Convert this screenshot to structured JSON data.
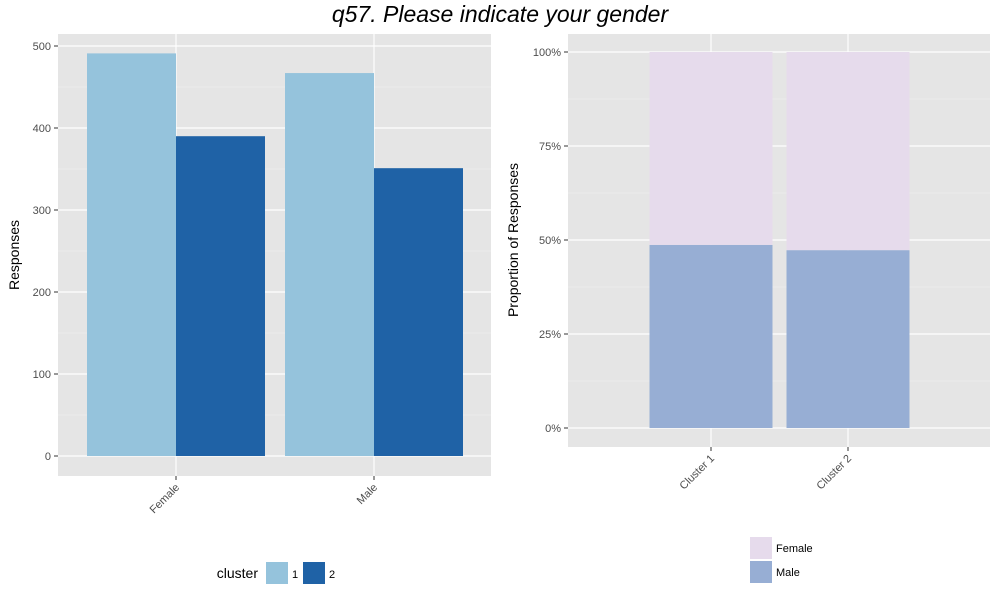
{
  "title": "q57. Please indicate your gender",
  "chart_data": [
    {
      "type": "bar",
      "categories": [
        "Female",
        "Male"
      ],
      "series": [
        {
          "name": "1",
          "values": [
            491,
            467
          ],
          "color": "#95c3dc"
        },
        {
          "name": "2",
          "values": [
            390,
            351
          ],
          "color": "#1f62a6"
        }
      ],
      "ylabel": "Responses",
      "xlabel": "",
      "ylim": [
        0,
        525
      ],
      "yticks": [
        0,
        100,
        200,
        300,
        400,
        500
      ],
      "legend": {
        "title": "cluster",
        "position": "bottom"
      },
      "grid": true
    },
    {
      "type": "bar",
      "stacked": true,
      "categories": [
        "Cluster 1",
        "Cluster 2"
      ],
      "series": [
        {
          "name": "Male",
          "values": [
            0.487,
            0.473
          ],
          "color": "#97aed4"
        },
        {
          "name": "Female",
          "values": [
            0.513,
            0.527
          ],
          "color": "#e6dbec"
        }
      ],
      "ylabel": "Proportion of Responses",
      "xlabel": "",
      "ylim": [
        0,
        1.05
      ],
      "yticks": [
        0,
        0.25,
        0.5,
        0.75,
        1.0
      ],
      "ytick_labels": [
        "0%",
        "25%",
        "50%",
        "75%",
        "100%"
      ],
      "legend": {
        "title": "",
        "entries": [
          "Female",
          "Male"
        ],
        "position": "bottom"
      },
      "grid": true
    }
  ]
}
